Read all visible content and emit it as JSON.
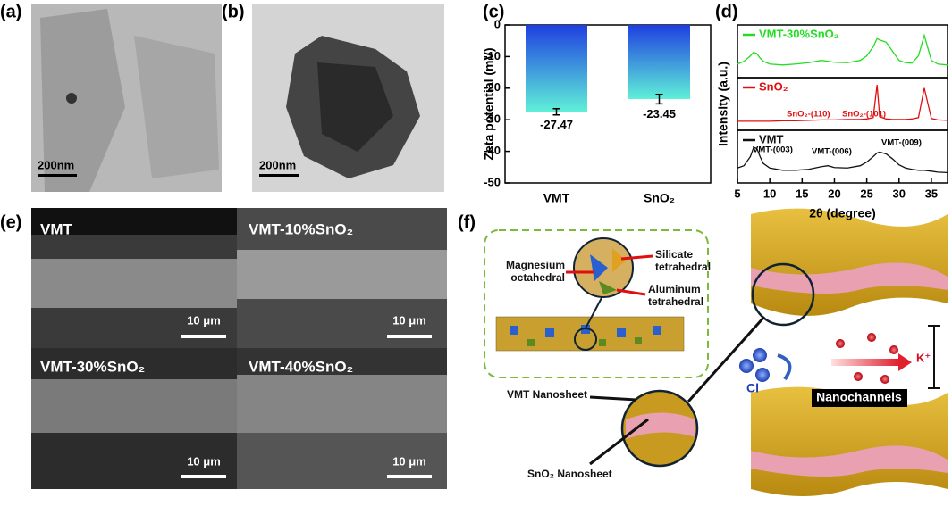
{
  "panel_labels": [
    "(a)",
    "(b)",
    "(c)",
    "(d)",
    "(e)",
    "(f)"
  ],
  "tem": {
    "scale_a": "200nm",
    "scale_b": "200nm"
  },
  "sem": {
    "labels": [
      "VMT",
      "VMT-10%SnO₂",
      "VMT-30%SnO₂",
      "VMT-40%SnO₂"
    ],
    "scale_bars": [
      "10 μm",
      "10 μm",
      "10 μm",
      "10 μm"
    ]
  },
  "chart_data": [
    {
      "type": "bar",
      "y_label": "Zeta potential (mV)",
      "categories": [
        "VMT",
        "SnO₂"
      ],
      "values": [
        -27.47,
        -23.45
      ],
      "errors": [
        1.0,
        1.5
      ],
      "color": [
        "#1f3fe0",
        "#5ff0d8"
      ],
      "ylim": [
        -50,
        0
      ],
      "yticks": [
        0,
        -10,
        -20,
        -30,
        -40,
        -50
      ]
    },
    {
      "type": "line",
      "x_label": "2θ (degree)",
      "y_label": "Intensity (a.u.)",
      "x": [
        5,
        6,
        7,
        7.5,
        8,
        8.5,
        9,
        10,
        12,
        14,
        16,
        18,
        19,
        20,
        22,
        24,
        25,
        26,
        26.6,
        27,
        28,
        29,
        30,
        31,
        32,
        33,
        33.9,
        35,
        36,
        37.5
      ],
      "series": [
        {
          "name": "VMT-30%SnO₂",
          "color": "#22dd22",
          "values": [
            22,
            28,
            40,
            48,
            45,
            35,
            28,
            22,
            20,
            22,
            25,
            30,
            28,
            26,
            25,
            30,
            40,
            60,
            78,
            75,
            70,
            50,
            30,
            25,
            24,
            40,
            85,
            30,
            22,
            20
          ]
        },
        {
          "name": "SnO₂",
          "color": "#e01010",
          "values": [
            12,
            12,
            12,
            12,
            12,
            12,
            12,
            12,
            13,
            13,
            14,
            15,
            15,
            15,
            16,
            16,
            17,
            20,
            92,
            22,
            17,
            16,
            16,
            16,
            17,
            20,
            85,
            18,
            15,
            14
          ]
        },
        {
          "name": "VMT",
          "color": "#111111",
          "values": [
            25,
            30,
            50,
            70,
            68,
            50,
            35,
            25,
            20,
            20,
            22,
            28,
            30,
            26,
            25,
            30,
            38,
            50,
            58,
            60,
            56,
            45,
            32,
            25,
            22,
            20,
            20,
            18,
            16,
            15
          ]
        }
      ],
      "ylim": [
        0,
        100
      ],
      "xlim": [
        5,
        37.5
      ],
      "xticks": [
        5,
        10,
        15,
        20,
        25,
        30,
        35
      ],
      "annotations": [
        "VMT-(003)",
        "VMT-(006)",
        "VMT-(009)",
        "SnO₂-(110)",
        "SnO₂-(101)"
      ]
    }
  ],
  "diagram": {
    "magnesium": [
      "Magnesium",
      "octahedral"
    ],
    "silicate": [
      "Silicate",
      "tetrahedral"
    ],
    "aluminum": [
      "Aluminum",
      "tetrahedral"
    ],
    "vmt_nanosheet": "VMT Nanosheet",
    "sno2_nanosheet": "SnO₂ Nanosheet",
    "cl": "Cl⁻",
    "k": "K⁺",
    "nanochannels": "Nanochannels"
  }
}
